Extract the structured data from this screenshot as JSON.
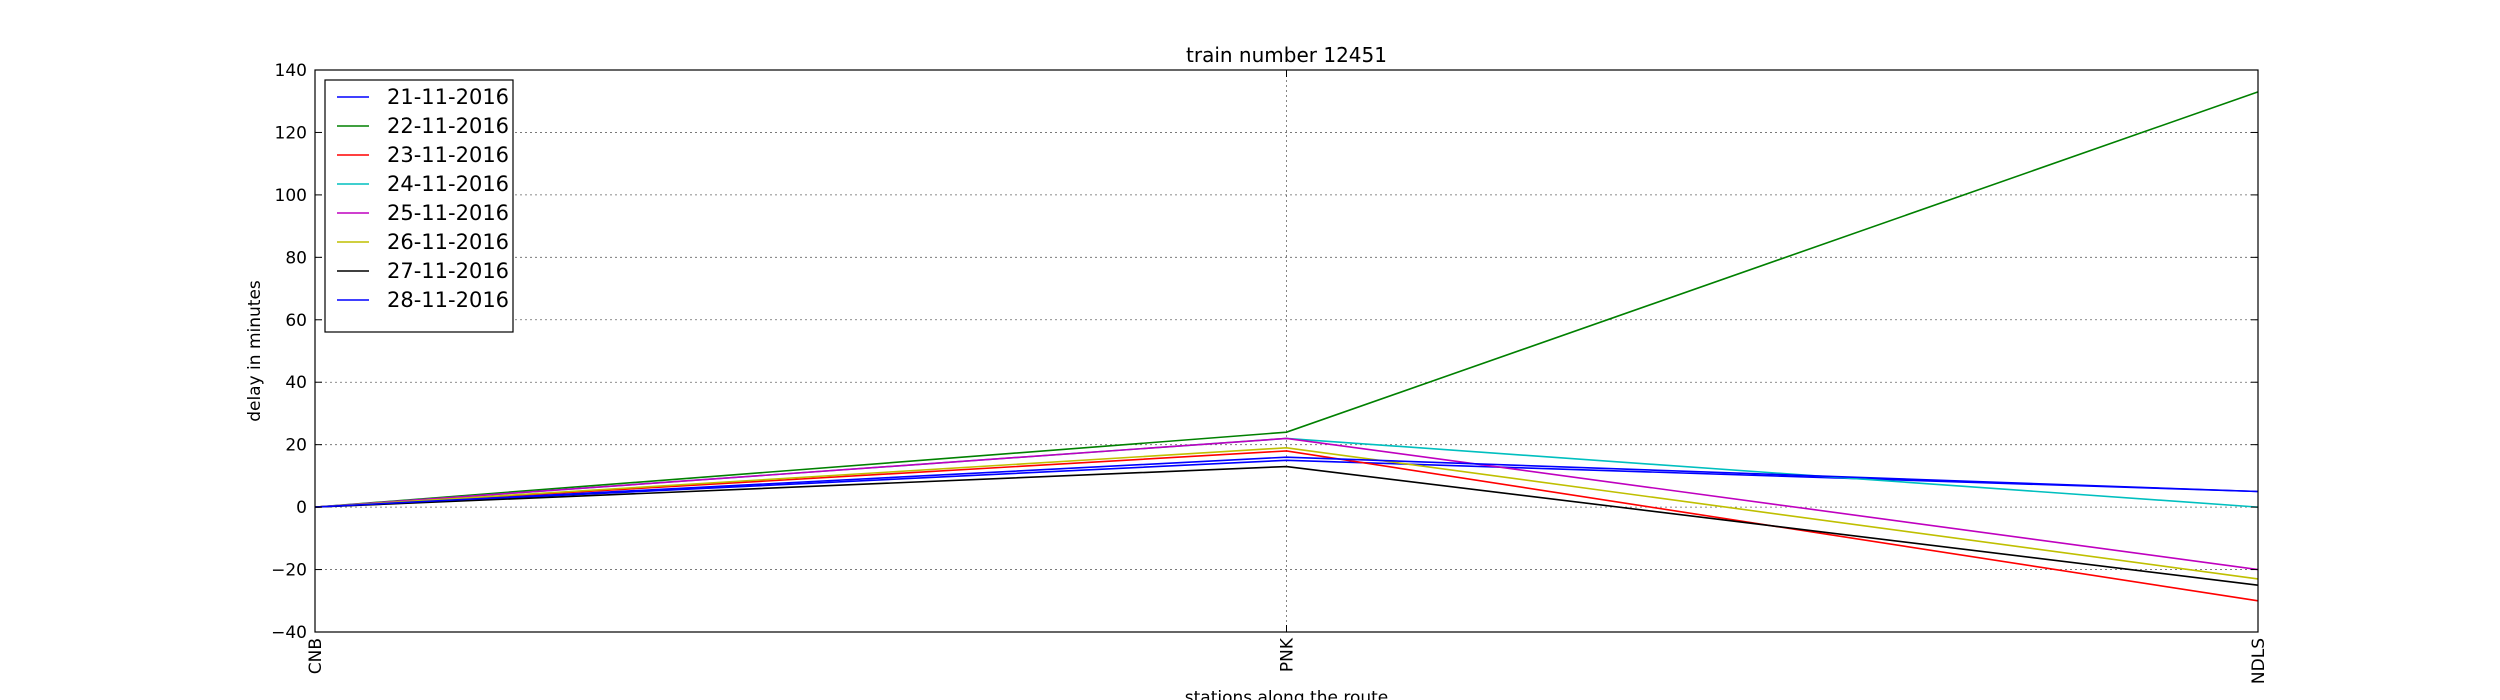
{
  "chart_data": {
    "type": "line",
    "title": "train number 12451",
    "xlabel": "stations along the route",
    "ylabel": "delay in minutes",
    "categories": [
      "CNB",
      "PNK",
      "NDLS"
    ],
    "ylim": [
      -40,
      140
    ],
    "yticks": [
      -40,
      -20,
      0,
      20,
      40,
      60,
      80,
      100,
      120,
      140
    ],
    "grid": true,
    "legend_position": "top-left",
    "series": [
      {
        "name": "21-11-2016",
        "color": "#0000ff",
        "values": [
          0,
          15,
          5
        ]
      },
      {
        "name": "22-11-2016",
        "color": "#008000",
        "values": [
          0,
          24,
          133
        ]
      },
      {
        "name": "23-11-2016",
        "color": "#ff0000",
        "values": [
          0,
          18,
          -30
        ]
      },
      {
        "name": "24-11-2016",
        "color": "#00bfbf",
        "values": [
          0,
          22,
          0
        ]
      },
      {
        "name": "25-11-2016",
        "color": "#bf00bf",
        "values": [
          0,
          22,
          -20
        ]
      },
      {
        "name": "26-11-2016",
        "color": "#bfbf00",
        "values": [
          0,
          19,
          -23
        ]
      },
      {
        "name": "27-11-2016",
        "color": "#000000",
        "values": [
          0,
          13,
          -25
        ]
      },
      {
        "name": "28-11-2016",
        "color": "#0000ff",
        "values": [
          0,
          16,
          5
        ]
      }
    ]
  }
}
